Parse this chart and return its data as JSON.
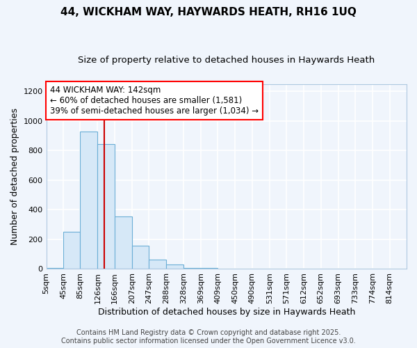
{
  "title": "44, WICKHAM WAY, HAYWARDS HEATH, RH16 1UQ",
  "subtitle": "Size of property relative to detached houses in Haywards Heath",
  "xlabel": "Distribution of detached houses by size in Haywards Heath",
  "ylabel": "Number of detached properties",
  "bins": [
    5,
    45,
    85,
    126,
    166,
    207,
    247,
    288,
    328,
    369,
    409,
    450,
    490,
    531,
    571,
    612,
    652,
    693,
    733,
    774,
    814,
    854
  ],
  "bin_labels": [
    "5sqm",
    "45sqm",
    "85sqm",
    "126sqm",
    "166sqm",
    "207sqm",
    "247sqm",
    "288sqm",
    "328sqm",
    "369sqm",
    "409sqm",
    "450sqm",
    "490sqm",
    "531sqm",
    "571sqm",
    "612sqm",
    "652sqm",
    "693sqm",
    "733sqm",
    "774sqm",
    "814sqm"
  ],
  "values": [
    5,
    250,
    930,
    845,
    355,
    155,
    65,
    30,
    5,
    5,
    0,
    0,
    0,
    0,
    0,
    0,
    0,
    0,
    0,
    0,
    0
  ],
  "bar_facecolor": "#d6e8f7",
  "bar_edgecolor": "#6aaed6",
  "vline_x": 142,
  "vline_color": "#cc0000",
  "ylim": [
    0,
    1250
  ],
  "yticks": [
    0,
    200,
    400,
    600,
    800,
    1000,
    1200
  ],
  "annotation_text": "44 WICKHAM WAY: 142sqm\n← 60% of detached houses are smaller (1,581)\n39% of semi-detached houses are larger (1,034) →",
  "footer_line1": "Contains HM Land Registry data © Crown copyright and database right 2025.",
  "footer_line2": "Contains public sector information licensed under the Open Government Licence v3.0.",
  "bg_color": "#f0f5fc",
  "plot_bg_color": "#f0f5fc",
  "grid_color": "#ffffff",
  "title_fontsize": 11,
  "subtitle_fontsize": 9.5,
  "axis_label_fontsize": 9,
  "tick_fontsize": 8,
  "footer_fontsize": 7,
  "ann_fontsize": 8.5
}
